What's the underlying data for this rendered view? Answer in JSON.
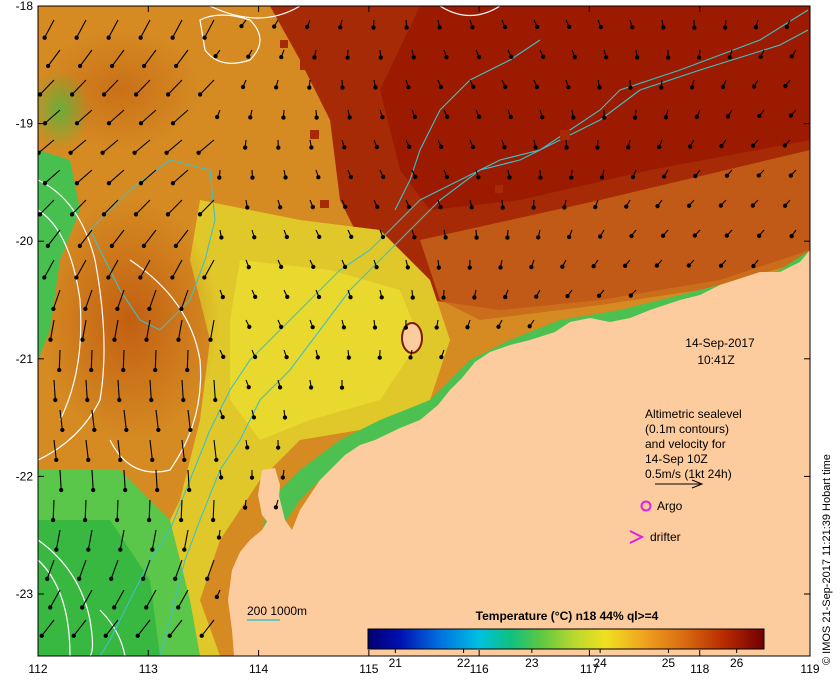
{
  "map": {
    "lon_ticks": [
      "112",
      "113",
      "114",
      "115",
      "116",
      "117",
      "118",
      "119"
    ],
    "lat_ticks": [
      "-18",
      "-19",
      "-20",
      "-21",
      "-22",
      "-23"
    ],
    "date_line1": "14-Sep-2017",
    "date_line2": "10:41Z",
    "info_lines": [
      "Altimetric sealevel",
      "(0.1m contours)",
      "and velocity for",
      "14-Sep 10Z",
      "0.5m/s (1kt 24h)"
    ],
    "argo_label": "Argo",
    "drifter_label": "drifter",
    "bathy_label": "200  1000m",
    "colorbar_title": "Temperature (°C) n18 44% ql>=4",
    "colorbar_ticks": [
      "21",
      "22",
      "23",
      "24",
      "25",
      "26"
    ],
    "colorbar_range": [
      20.6,
      26.4
    ],
    "credit": "© IMOS 21-Sep-2017 11:21:39 Hobart time",
    "colors": {
      "land": "#fdcc9e",
      "warm": "#9c1a00",
      "mid": "#d98a1e",
      "yellow": "#e3d42c",
      "green": "#5ec84a",
      "bathy": "#3fc0c8",
      "marker": "#e020e0"
    }
  }
}
